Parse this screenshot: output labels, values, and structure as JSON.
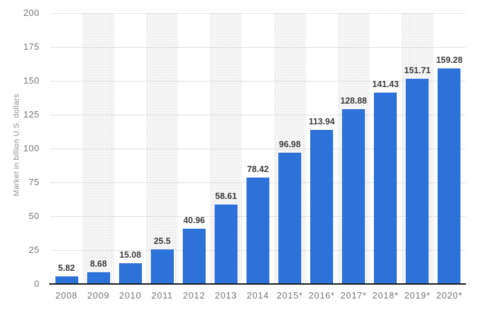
{
  "chart_data": {
    "type": "bar",
    "title": "",
    "xlabel": "",
    "ylabel": "Market in billion U.S. dollars",
    "categories": [
      "2008",
      "2009",
      "2010",
      "2011",
      "2012",
      "2013",
      "2014",
      "2015*",
      "2016*",
      "2017*",
      "2018*",
      "2019*",
      "2020*"
    ],
    "values": [
      5.82,
      8.68,
      15.08,
      25.5,
      40.96,
      58.61,
      78.42,
      96.98,
      113.94,
      128.88,
      141.43,
      151.71,
      159.28
    ],
    "ylim": [
      0,
      200
    ],
    "ytick_step": 25,
    "grid": true,
    "gridline_style": "dotted",
    "legend": "none",
    "value_labels_shown": true,
    "alternating_column_bands": true
  },
  "colors": {
    "background": "#ffffff",
    "bar": "#2d72d9",
    "band_background": "#f6f6f6",
    "band_dot": "#e9e9e9",
    "gridline": "#c9c9c9",
    "axis_line": "#1a1a1a",
    "tick_label": "#757575",
    "value_label": "#3c3c3c",
    "axis_title": "#8f8f8f"
  }
}
